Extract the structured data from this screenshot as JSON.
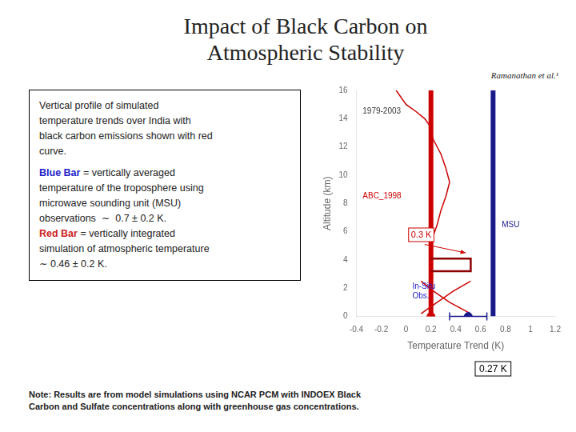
{
  "chart_data": {
    "type": "scatter",
    "title": [
      "Impact of Black Carbon on",
      "Atmospheric Stability"
    ],
    "reference": "Ramanathan et al.¹",
    "note": "Note: Results are from model simulations using NCAR PCM with INDOEX Black\nCarbon and Sulfate concentrations along with greenhouse gas concentrations.",
    "description": [
      [
        [
          {
            "text": "Vertical profile of simulated"
          }
        ],
        [
          {
            "text": "temperature trends over India with"
          }
        ],
        [
          {
            "text": "black carbon emissions shown with red"
          }
        ],
        [
          {
            "text": "curve."
          }
        ]
      ],
      [
        [
          {
            "text": "Blue Bar",
            "color": "#2222CC"
          },
          {
            "text": " = vertically averaged"
          }
        ],
        [
          {
            "text": "temperature of the troposphere using"
          }
        ],
        [
          {
            "text": "microwave sounding unit (MSU)"
          }
        ],
        [
          {
            "text": "observations  ∼  0.7 ± 0.2 K."
          }
        ],
        [
          {
            "text": "Red Bar",
            "color": "#CC2222"
          },
          {
            "text": " = vertically integrated"
          }
        ],
        [
          {
            "text": "simulation of atmospheric temperature"
          }
        ],
        [
          {
            "text": "∼ 0.46 ± 0.2 K."
          }
        ]
      ]
    ],
    "xlabel": "Temperature Trend (K)",
    "ylabel": "Altitude (km)",
    "xlim": [
      -0.4,
      1.2
    ],
    "ylim": [
      0,
      16
    ],
    "xticks": [
      -0.4,
      -0.2,
      0,
      0.2,
      0.4,
      0.6,
      0.8,
      1,
      1.2
    ],
    "yticks": [
      0,
      2,
      4,
      6,
      8,
      10,
      12,
      14,
      16
    ],
    "grid": false,
    "series": [
      {
        "type": "vline",
        "color": "#CC0000",
        "x": 0.2
      },
      {
        "type": "vline",
        "color": "#1A1A8C",
        "x": 0.7
      },
      {
        "type": "line",
        "color": "#CC0000",
        "x": [
          -0.08,
          0.0,
          0.08,
          0.15,
          0.19,
          0.2
        ],
        "values": [
          16.0,
          15.0,
          14.5,
          14.0,
          13.5,
          13.0
        ]
      },
      {
        "type": "line",
        "color": "#CC0000",
        "x": [
          0.2,
          0.22,
          0.28,
          0.32,
          0.35,
          0.32,
          0.28,
          0.25,
          0.21,
          0.2
        ],
        "values": [
          13.0,
          12.5,
          11.5,
          10.5,
          9.5,
          8.5,
          7.5,
          6.5,
          5.5,
          5.0
        ]
      },
      {
        "type": "line",
        "color": "#8B0000",
        "x": [
          0.2,
          0.52,
          0.52,
          0.2
        ],
        "values": [
          4.1,
          4.1,
          3.2,
          3.2
        ]
      },
      {
        "type": "line",
        "color": "#CC0000",
        "x": [
          0.12,
          0.22,
          0.35,
          0.52
        ],
        "values": [
          2.5,
          1.8,
          1.0,
          0.2
        ]
      },
      {
        "type": "line",
        "color": "#CC0000",
        "x": [
          0.52,
          0.38,
          0.25,
          0.12
        ],
        "values": [
          2.5,
          1.8,
          1.0,
          0.2
        ]
      },
      {
        "type": "scatter",
        "color": "#CC0000",
        "x": [
          0.2
        ],
        "values": [
          0
        ]
      },
      {
        "type": "scatter",
        "color": "#1A1A8C",
        "x": [
          0.5
        ],
        "values": [
          0
        ],
        "xerr": [
          0.15
        ]
      }
    ],
    "annotations": [
      {
        "text": "1979-2003",
        "x": -0.35,
        "y": 14.5,
        "color": "#333333"
      },
      {
        "text": "ABC_1998",
        "x": -0.35,
        "y": 8.5,
        "color": "#CC0000"
      },
      {
        "text": "MSU",
        "x": 0.77,
        "y": 6.5,
        "color": "#1A1A8C"
      },
      {
        "text": "In-Situ\nObs.",
        "x": 0.05,
        "y": 1.8,
        "color": "#2222CC"
      }
    ],
    "boxed_annotations": [
      {
        "text": "0.3 K",
        "x": 0.02,
        "y": 5.3,
        "color": "#CC0000"
      }
    ],
    "arrows": [
      {
        "from": [
          0.15,
          5.1
        ],
        "to": [
          0.48,
          4.5
        ],
        "color": "#CC0000"
      }
    ],
    "axis_annotation": {
      "text": "0.27 K",
      "x": 0.7
    }
  }
}
